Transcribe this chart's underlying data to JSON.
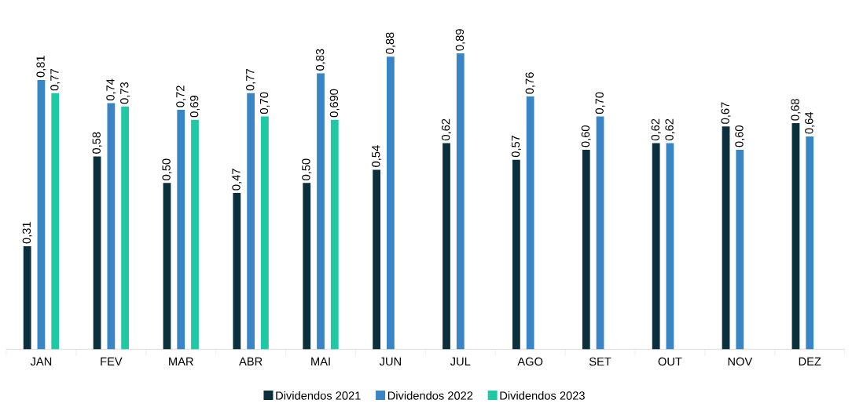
{
  "chart_data": {
    "type": "bar",
    "categories": [
      "JAN",
      "FEV",
      "MAR",
      "ABR",
      "MAI",
      "JUN",
      "JUL",
      "AGO",
      "SET",
      "OUT",
      "NOV",
      "DEZ"
    ],
    "series": [
      {
        "name": "Dividendos 2021",
        "color": "#0b2f3d",
        "values": [
          0.31,
          0.58,
          0.5,
          0.47,
          0.5,
          0.54,
          0.62,
          0.57,
          0.6,
          0.62,
          0.67,
          0.68
        ],
        "value_labels": [
          "0,31",
          "0,58",
          "0,50",
          "0,47",
          "0,50",
          "0,54",
          "0,62",
          "0,57",
          "0,60",
          "0,62",
          "0,67",
          "0,68"
        ]
      },
      {
        "name": "Dividendos 2022",
        "color": "#3a85c6",
        "values": [
          0.81,
          0.74,
          0.72,
          0.77,
          0.83,
          0.88,
          0.89,
          0.76,
          0.7,
          0.62,
          0.6,
          0.64
        ],
        "value_labels": [
          "0,81",
          "0,74",
          "0,72",
          "0,77",
          "0,83",
          "0,88",
          "0,89",
          "0,76",
          "0,70",
          "0,62",
          "0,60",
          "0,64"
        ]
      },
      {
        "name": "Dividendos 2023",
        "color": "#1fc9a5",
        "values": [
          0.77,
          0.73,
          0.69,
          0.7,
          0.69,
          null,
          null,
          null,
          null,
          null,
          null,
          null
        ],
        "value_labels": [
          "0,77",
          "0,73",
          "0,69",
          "0,70",
          "0,690",
          null,
          null,
          null,
          null,
          null,
          null,
          null
        ]
      }
    ],
    "legend": "bottom"
  }
}
